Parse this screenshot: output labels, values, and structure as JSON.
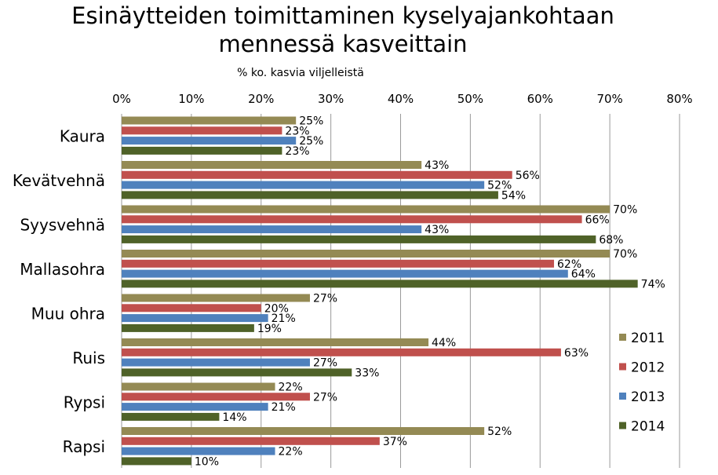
{
  "chart_data": {
    "type": "bar",
    "orientation": "horizontal",
    "title_lines": [
      "Esinäytteiden toimittaminen kyselyajankohtaan",
      "mennessä kasveittain"
    ],
    "subtitle": "% ko. kasvia viljelleistä",
    "categories": [
      "Kaura",
      "Kevätvehnä",
      "Syysvehnä",
      "Mallasohra",
      "Muu ohra",
      "Ruis",
      "Rypsi",
      "Rapsi"
    ],
    "series": [
      {
        "name": "2011",
        "color": "#948a54",
        "values": [
          25,
          43,
          70,
          70,
          27,
          44,
          22,
          52
        ]
      },
      {
        "name": "2012",
        "color": "#c0504d",
        "values": [
          23,
          56,
          66,
          62,
          20,
          63,
          27,
          37
        ]
      },
      {
        "name": "2013",
        "color": "#4f81bd",
        "values": [
          25,
          52,
          43,
          64,
          21,
          27,
          21,
          22
        ]
      },
      {
        "name": "2014",
        "color": "#4f6228",
        "values": [
          23,
          54,
          68,
          74,
          19,
          33,
          14,
          10
        ]
      }
    ],
    "xlim": [
      0,
      80
    ],
    "xticks": [
      0,
      10,
      20,
      30,
      40,
      50,
      60,
      70,
      80
    ],
    "tick_suffix": "%",
    "label_suffix": "%",
    "grid": true,
    "legend_position": "right"
  }
}
